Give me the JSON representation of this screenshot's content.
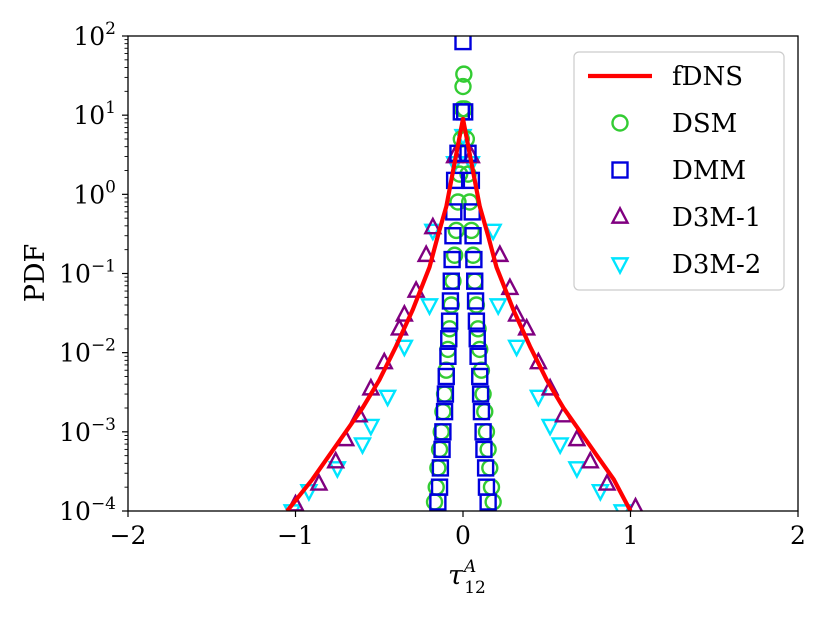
{
  "chart_data": {
    "type": "scatter",
    "xlabel": "τ",
    "xlabel_sup": "A",
    "xlabel_sub": "12",
    "ylabel": "PDF",
    "xlim": [
      -2,
      2
    ],
    "ylim": [
      0.0001,
      100
    ],
    "yscale": "log",
    "grid": false,
    "legend_position": "top-right",
    "x_ticks": [
      {
        "value": -2,
        "label": "−2"
      },
      {
        "value": -1,
        "label": "−1"
      },
      {
        "value": 0,
        "label": "0"
      },
      {
        "value": 1,
        "label": "1"
      },
      {
        "value": 2,
        "label": "2"
      }
    ],
    "y_ticks": [
      {
        "value": 0.0001,
        "base": "10",
        "exp": "−4"
      },
      {
        "value": 0.001,
        "base": "10",
        "exp": "−3"
      },
      {
        "value": 0.01,
        "base": "10",
        "exp": "−2"
      },
      {
        "value": 0.1,
        "base": "10",
        "exp": "−1"
      },
      {
        "value": 1,
        "base": "10",
        "exp": "0"
      },
      {
        "value": 10,
        "base": "10",
        "exp": "1"
      },
      {
        "value": 100,
        "base": "10",
        "exp": "2"
      }
    ],
    "series": [
      {
        "name": "fDNS",
        "style": "line",
        "color": "#ff0000",
        "points": [
          [
            -1.05,
            0.0001
          ],
          [
            -0.9,
            0.00025
          ],
          [
            -0.8,
            0.0005
          ],
          [
            -0.7,
            0.001
          ],
          [
            -0.6,
            0.002
          ],
          [
            -0.5,
            0.0045
          ],
          [
            -0.4,
            0.012
          ],
          [
            -0.3,
            0.035
          ],
          [
            -0.2,
            0.12
          ],
          [
            -0.15,
            0.3
          ],
          [
            -0.1,
            0.7
          ],
          [
            -0.05,
            2.5
          ],
          [
            0,
            9
          ],
          [
            0.05,
            2.5
          ],
          [
            0.1,
            0.7
          ],
          [
            0.15,
            0.3
          ],
          [
            0.2,
            0.12
          ],
          [
            0.3,
            0.035
          ],
          [
            0.4,
            0.012
          ],
          [
            0.5,
            0.0045
          ],
          [
            0.6,
            0.002
          ],
          [
            0.7,
            0.001
          ],
          [
            0.8,
            0.0005
          ],
          [
            0.9,
            0.00025
          ],
          [
            1.0,
            0.0001
          ]
        ]
      },
      {
        "name": "DSM",
        "style": "marker",
        "marker": "circle",
        "color": "#33cc33",
        "points": [
          [
            -0.17,
            0.00013
          ],
          [
            -0.16,
            0.0002
          ],
          [
            -0.15,
            0.00035
          ],
          [
            -0.14,
            0.0006
          ],
          [
            -0.13,
            0.001
          ],
          [
            -0.12,
            0.0018
          ],
          [
            -0.11,
            0.003
          ],
          [
            -0.1,
            0.006
          ],
          [
            -0.09,
            0.011
          ],
          [
            -0.08,
            0.02
          ],
          [
            -0.07,
            0.04
          ],
          [
            -0.06,
            0.08
          ],
          [
            -0.05,
            0.17
          ],
          [
            -0.04,
            0.35
          ],
          [
            -0.03,
            0.8
          ],
          [
            -0.02,
            1.8
          ],
          [
            -0.01,
            5
          ],
          [
            -0.005,
            12
          ],
          [
            0,
            23
          ],
          [
            0.005,
            33
          ],
          [
            0.01,
            12
          ],
          [
            0.02,
            5
          ],
          [
            0.03,
            1.8
          ],
          [
            0.04,
            0.8
          ],
          [
            0.05,
            0.35
          ],
          [
            0.06,
            0.17
          ],
          [
            0.07,
            0.08
          ],
          [
            0.08,
            0.04
          ],
          [
            0.09,
            0.02
          ],
          [
            0.1,
            0.011
          ],
          [
            0.11,
            0.006
          ],
          [
            0.12,
            0.003
          ],
          [
            0.13,
            0.0018
          ],
          [
            0.14,
            0.001
          ],
          [
            0.15,
            0.0006
          ],
          [
            0.16,
            0.00035
          ],
          [
            0.17,
            0.0002
          ],
          [
            0.18,
            0.00013
          ]
        ]
      },
      {
        "name": "DMM",
        "style": "marker",
        "marker": "square",
        "color": "#0000dd",
        "points": [
          [
            0,
            85
          ],
          [
            -0.01,
            11
          ],
          [
            0.01,
            11
          ],
          [
            -0.03,
            3.3
          ],
          [
            0.03,
            3.3
          ],
          [
            -0.05,
            1.5
          ],
          [
            0.05,
            1.5
          ],
          [
            -0.055,
            0.6
          ],
          [
            0.055,
            0.6
          ],
          [
            -0.06,
            0.3
          ],
          [
            0.06,
            0.3
          ],
          [
            -0.065,
            0.15
          ],
          [
            0.065,
            0.15
          ],
          [
            -0.07,
            0.08
          ],
          [
            0.07,
            0.08
          ],
          [
            -0.075,
            0.045
          ],
          [
            0.075,
            0.045
          ],
          [
            -0.08,
            0.025
          ],
          [
            0.08,
            0.025
          ],
          [
            -0.085,
            0.015
          ],
          [
            0.085,
            0.015
          ],
          [
            -0.09,
            0.009
          ],
          [
            0.09,
            0.009
          ],
          [
            -0.1,
            0.005
          ],
          [
            0.1,
            0.005
          ],
          [
            -0.105,
            0.003
          ],
          [
            0.105,
            0.003
          ],
          [
            -0.11,
            0.0018
          ],
          [
            0.11,
            0.0018
          ],
          [
            -0.12,
            0.001
          ],
          [
            0.12,
            0.001
          ],
          [
            -0.125,
            0.0006
          ],
          [
            0.125,
            0.0006
          ],
          [
            -0.135,
            0.00035
          ],
          [
            0.135,
            0.00035
          ],
          [
            -0.14,
            0.0002
          ],
          [
            0.14,
            0.0002
          ],
          [
            -0.15,
            0.00013
          ],
          [
            0.15,
            0.00013
          ]
        ]
      },
      {
        "name": "D3M-1",
        "style": "marker",
        "marker": "triangle-up",
        "color": "#800080",
        "points": [
          [
            -1.0,
            0.00012
          ],
          [
            -0.86,
            0.00022
          ],
          [
            -0.76,
            0.00042
          ],
          [
            -0.7,
            0.0008
          ],
          [
            -0.62,
            0.0016
          ],
          [
            -0.55,
            0.0035
          ],
          [
            -0.47,
            0.0075
          ],
          [
            -0.38,
            0.02
          ],
          [
            -0.35,
            0.03
          ],
          [
            -0.28,
            0.06
          ],
          [
            -0.22,
            0.17
          ],
          [
            -0.18,
            0.38
          ],
          [
            -0.05,
            3
          ],
          [
            0.05,
            3
          ],
          [
            0.22,
            0.17
          ],
          [
            0.28,
            0.065
          ],
          [
            0.32,
            0.03
          ],
          [
            0.38,
            0.02
          ],
          [
            0.45,
            0.0075
          ],
          [
            0.52,
            0.0035
          ],
          [
            0.6,
            0.0016
          ],
          [
            0.68,
            0.0008
          ],
          [
            0.76,
            0.00042
          ],
          [
            0.86,
            0.00022
          ],
          [
            1.03,
            0.00011
          ]
        ]
      },
      {
        "name": "D3M-2",
        "style": "marker",
        "marker": "triangle-down",
        "color": "#00e5ff",
        "points": [
          [
            -1.02,
            0.0001
          ],
          [
            -0.92,
            0.00018
          ],
          [
            -0.75,
            0.00035
          ],
          [
            -0.6,
            0.0007
          ],
          [
            -0.55,
            0.0012
          ],
          [
            -0.45,
            0.0028
          ],
          [
            -0.35,
            0.012
          ],
          [
            -0.2,
            0.04
          ],
          [
            -0.18,
            0.35
          ],
          [
            -0.05,
            2.5
          ],
          [
            0,
            5.5
          ],
          [
            0.05,
            2.5
          ],
          [
            0.18,
            0.35
          ],
          [
            0.21,
            0.04
          ],
          [
            0.32,
            0.012
          ],
          [
            0.45,
            0.0028
          ],
          [
            0.52,
            0.0012
          ],
          [
            0.58,
            0.0007
          ],
          [
            0.68,
            0.00035
          ],
          [
            0.82,
            0.00018
          ],
          [
            0.95,
            0.0001
          ]
        ]
      }
    ]
  }
}
